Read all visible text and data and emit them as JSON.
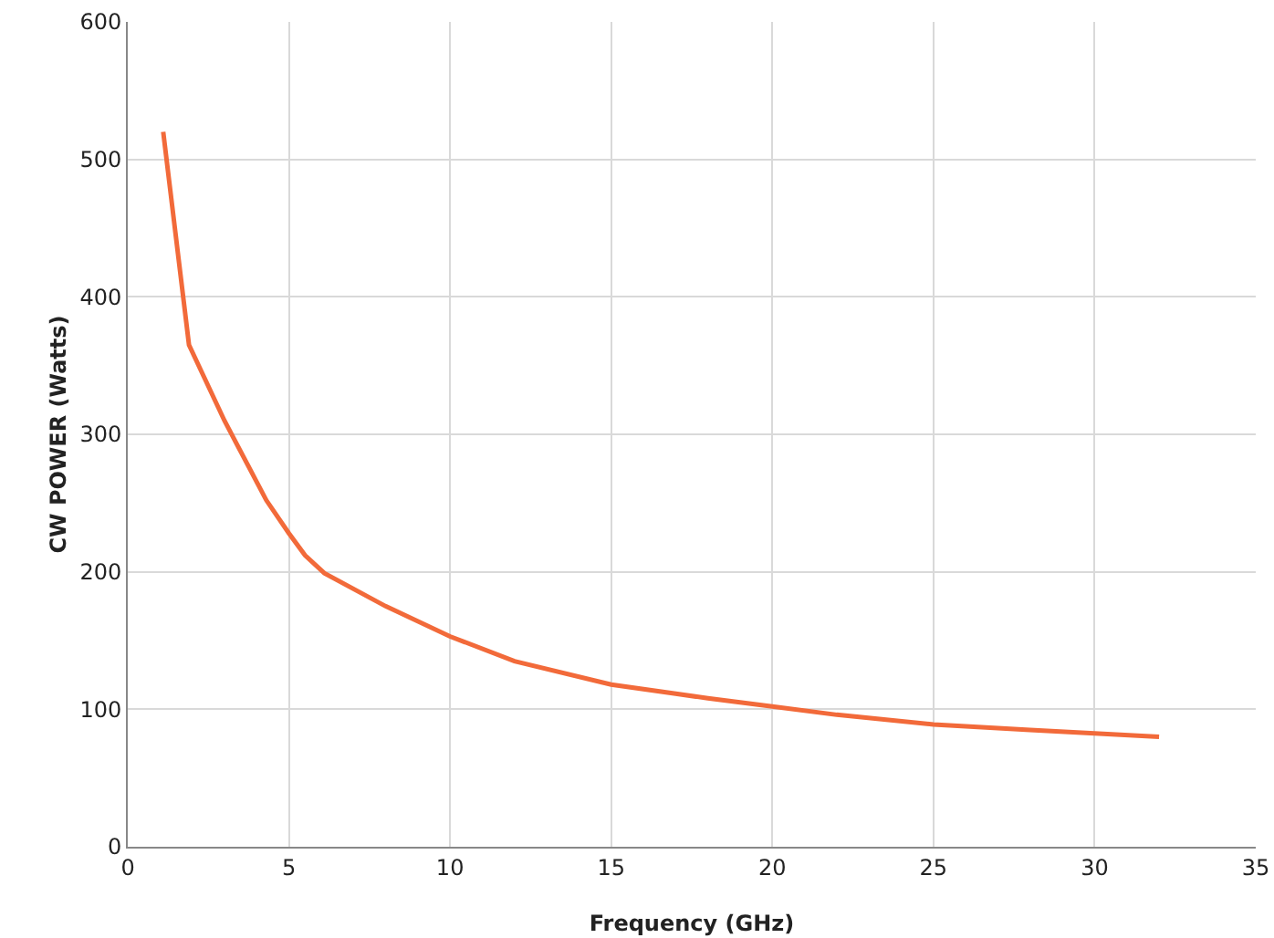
{
  "chart_data": {
    "type": "line",
    "xlabel": "Frequency (GHz)",
    "ylabel": "CW POWER (Watts)",
    "series": [
      {
        "color": "#f26a3a",
        "x": [
          1.1,
          1.9,
          3,
          4.3,
          5,
          5.5,
          6.1,
          8,
          10,
          12,
          15,
          18,
          20,
          22,
          25,
          28,
          32
        ],
        "values": [
          520,
          365,
          310,
          252,
          228,
          212,
          199,
          175,
          153,
          135,
          118,
          108,
          102,
          96,
          89,
          85,
          80
        ]
      }
    ],
    "xlim": [
      0,
      35
    ],
    "xticks": [
      0,
      5,
      10,
      15,
      20,
      25,
      30,
      35
    ],
    "ylim": [
      0,
      600
    ],
    "yticks": [
      0,
      100,
      200,
      300,
      400,
      500,
      600
    ],
    "grid": true,
    "marker": "none",
    "line_style": "solid"
  }
}
